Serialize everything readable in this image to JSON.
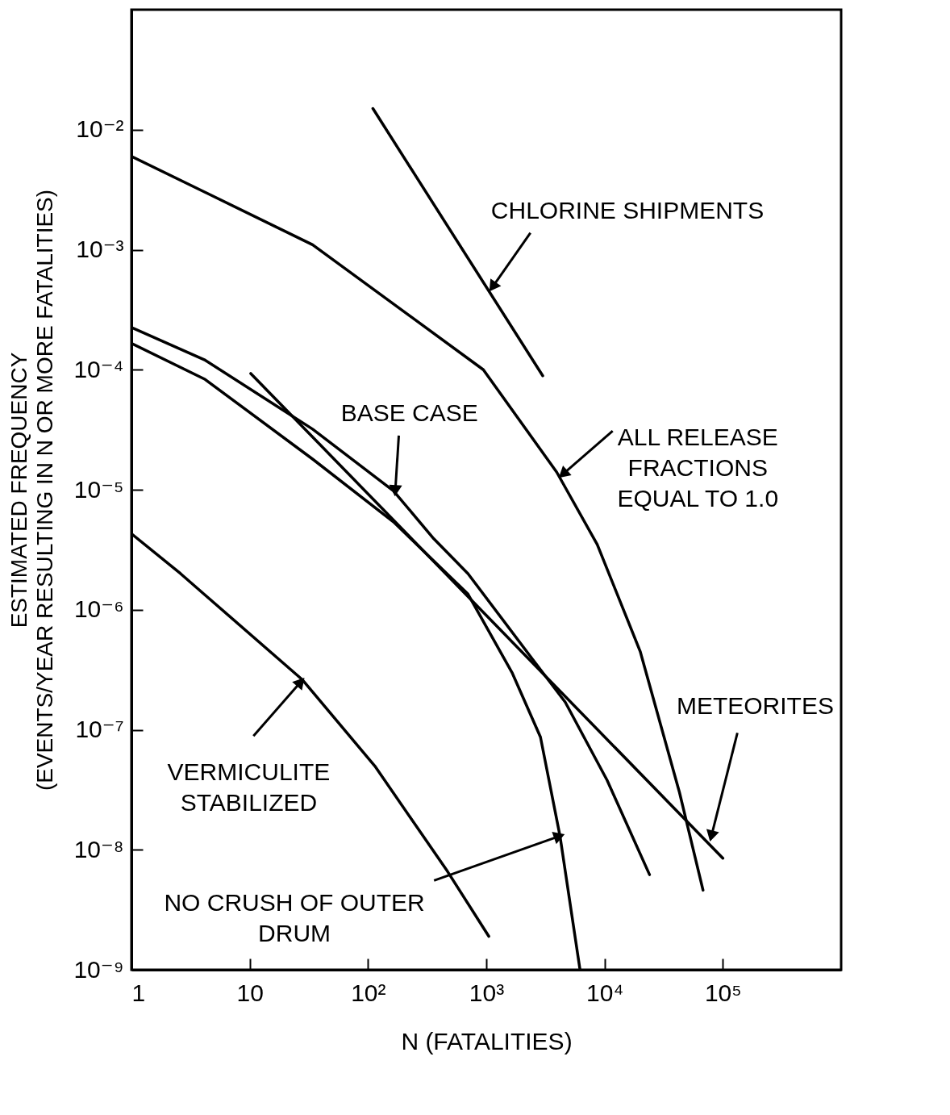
{
  "chart_data": {
    "type": "line",
    "log": "xy",
    "xlabel": "N (FATALITIES)",
    "ylabel": "ESTIMATED FREQUENCY\n(EVENTS/YEAR RESULTING IN N OR MORE FATALITIES)",
    "xlim": [
      1,
      1000000
    ],
    "ylim": [
      1e-09,
      0.1
    ],
    "xticks": [
      1,
      10,
      {
        "value": 100,
        "label": "10²"
      },
      {
        "value": 1000,
        "label": "10³"
      },
      {
        "value": 10000,
        "label": "10⁴"
      },
      {
        "value": 100000,
        "label": "10⁵"
      }
    ],
    "yticks": [
      {
        "value": 1e-09,
        "label": "10⁻⁹"
      },
      {
        "value": 1e-08,
        "label": "10⁻⁸"
      },
      {
        "value": 1e-07,
        "label": "10⁻⁷"
      },
      {
        "value": 1e-06,
        "label": "10⁻⁶"
      },
      {
        "value": 1e-05,
        "label": "10⁻⁵"
      },
      {
        "value": 0.0001,
        "label": "10⁻⁴"
      },
      {
        "value": 0.001,
        "label": "10⁻³"
      },
      {
        "value": 0.01,
        "label": "10⁻²"
      }
    ],
    "series": [
      {
        "color": "#000000",
        "x": [
          110,
          3000
        ],
        "values": [
          0.015,
          8.9e-05
        ]
      },
      {
        "color": "#000000",
        "x": [
          1,
          34,
          944,
          3940,
          8670,
          20000,
          43000,
          68000
        ],
        "values": [
          0.006,
          0.0011,
          0.0001,
          1.4e-05,
          3.5e-06,
          4.5e-07,
          3e-08,
          4.6e-09
        ]
      },
      {
        "color": "#000000",
        "x": [
          1,
          4.2,
          34,
          164,
          360,
          700,
          2400,
          4650,
          10500,
          24000
        ],
        "values": [
          0.000225,
          0.00012,
          3.2e-05,
          9.8e-06,
          3.9e-06,
          2e-06,
          4e-07,
          1.7e-07,
          3.8e-08,
          6.2e-09
        ]
      },
      {
        "color": "#000000",
        "x": [
          1,
          4.2,
          34,
          164,
          700,
          1650,
          2870,
          4200,
          6200
        ],
        "values": [
          0.000166,
          8.3e-05,
          1.8e-05,
          5.4e-06,
          1.35e-06,
          3e-07,
          8.7e-08,
          1.3e-08,
          1e-09
        ]
      },
      {
        "color": "#000000",
        "x": [
          10.2,
          100000
        ],
        "values": [
          9.3e-05,
          8.5e-09
        ]
      },
      {
        "color": "#000000",
        "x": [
          1,
          2.6,
          28,
          114,
          470,
          1050
        ],
        "values": [
          4.3e-06,
          2e-06,
          2.6e-07,
          5e-08,
          6.6e-09,
          1.9e-09
        ]
      }
    ],
    "annotations": [
      {
        "text": "CHLORINE SHIPMENTS",
        "x": 1130,
        "y": 0.00049
      },
      {
        "text": "BASE CASE",
        "x": 170,
        "y": 9.8e-06
      },
      {
        "text": "ALL RELEASE\nFRACTIONS\nEQUAL TO 1.0",
        "x": 4450,
        "y": 1.35e-05
      },
      {
        "text": "METEORITES",
        "x": 80000,
        "y": 1.3e-08
      },
      {
        "text": "VERMICULITE\nSTABILIZED",
        "x": 27,
        "y": 2.5e-07
      },
      {
        "text": "NO CRUSH OF OUTER\nDRUM",
        "x": 4150,
        "y": 1.3e-08
      }
    ]
  }
}
